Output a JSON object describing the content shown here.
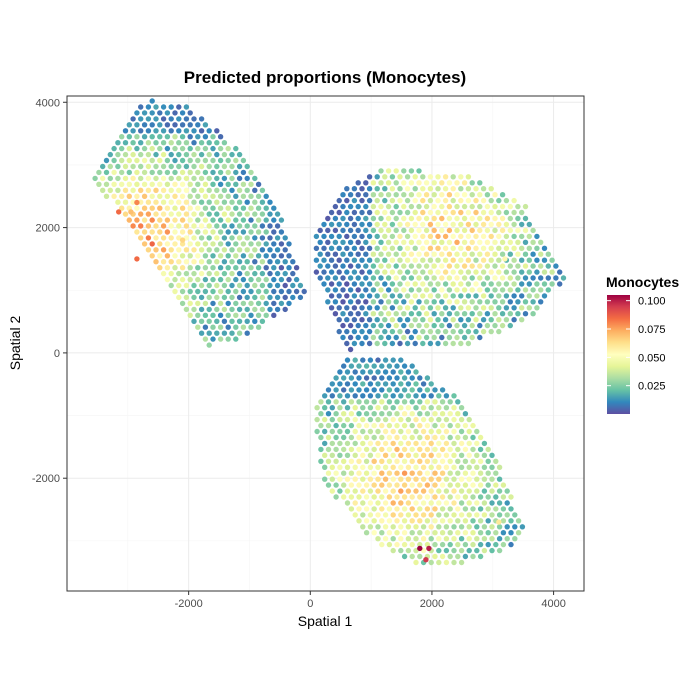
{
  "chart_data": {
    "type": "scatter",
    "title": "Predicted proportions (Monocytes)",
    "xlabel": "Spatial 1",
    "ylabel": "Spatial 2",
    "xlim": [
      -4000,
      4500
    ],
    "ylim": [
      -3800,
      4100
    ],
    "x_ticks": [
      -2000,
      0,
      2000,
      4000
    ],
    "y_ticks": [
      -2000,
      0,
      2000,
      4000
    ],
    "grid": true,
    "legend": {
      "title": "Monocytes",
      "position": "right",
      "range": [
        0.0,
        0.105
      ],
      "ticks": [
        0.025,
        0.05,
        0.075,
        0.1
      ],
      "colors": [
        "#5E4FA2",
        "#3288BD",
        "#66C2A5",
        "#ABDDA4",
        "#E6F598",
        "#FFFFBF",
        "#FEE08B",
        "#FDAE61",
        "#F46D43",
        "#D53E4F",
        "#9E0142"
      ]
    },
    "regions": [
      {
        "name": "upper-left",
        "x_range": [
          -3600,
          -50
        ],
        "y_range": [
          100,
          4020
        ],
        "row_step": 95,
        "col_step": 125,
        "outline": [
          [
            -3500,
            3000
          ],
          [
            -2700,
            4050
          ],
          [
            -2000,
            3950
          ],
          [
            -1250,
            3300
          ],
          [
            -600,
            2500
          ],
          [
            -50,
            900
          ],
          [
            -1100,
            250
          ],
          [
            -1700,
            100
          ],
          [
            -2700,
            1700
          ],
          [
            -3600,
            2800
          ]
        ]
      },
      {
        "name": "upper-right",
        "x_range": [
          100,
          4200
        ],
        "y_range": 50,
        "row_step": 95,
        "col_step": 125,
        "outline": [
          [
            100,
            2000
          ],
          [
            500,
            2600
          ],
          [
            1200,
            2950
          ],
          [
            2600,
            2850
          ],
          [
            3500,
            2400
          ],
          [
            4200,
            1200
          ],
          [
            3700,
            600
          ],
          [
            2700,
            150
          ],
          [
            600,
            50
          ],
          [
            100,
            1200
          ]
        ]
      },
      {
        "name": "lower",
        "x_range": [
          50,
          3550
        ],
        "y_range": [
          -3450,
          -20
        ],
        "row_step": 95,
        "col_step": 125,
        "outline": [
          [
            600,
            -20
          ],
          [
            1550,
            -100
          ],
          [
            2400,
            -700
          ],
          [
            2900,
            -1300
          ],
          [
            3550,
            -2900
          ],
          [
            3100,
            -3200
          ],
          [
            2100,
            -3450
          ],
          [
            1500,
            -3300
          ],
          [
            800,
            -2800
          ],
          [
            200,
            -2000
          ],
          [
            50,
            -800
          ]
        ]
      }
    ],
    "highlights": [
      {
        "x": -3150,
        "y": 2250,
        "value": 0.085
      },
      {
        "x": -2850,
        "y": 2400,
        "value": 0.08
      },
      {
        "x": -2950,
        "y": 2250,
        "value": 0.07
      },
      {
        "x": -2850,
        "y": 1500,
        "value": 0.085
      },
      {
        "x": -2100,
        "y": 1800,
        "value": 0.065
      },
      {
        "x": 1800,
        "y": -3120,
        "value": 0.105
      },
      {
        "x": 1950,
        "y": -3120,
        "value": 0.1
      },
      {
        "x": 1900,
        "y": -3300,
        "value": 0.095
      },
      {
        "x": 3100,
        "y": -2700,
        "value": 0.06
      },
      {
        "x": 3200,
        "y": 1500,
        "value": 0.055
      }
    ]
  }
}
